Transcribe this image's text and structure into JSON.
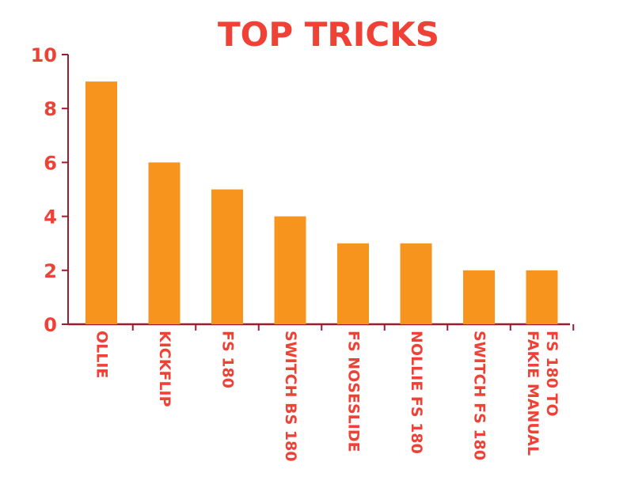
{
  "chart_data": {
    "type": "bar",
    "title": "TOP TRICKS",
    "xlabel": "",
    "ylabel": "",
    "categories": [
      "OLLIE",
      "KICKFLIP",
      "FS 180",
      "SWITCH BS 180",
      "FS NOSESLIDE",
      "NOLLIE FS 180",
      "SWITCH FS 180",
      "FS 180 TO FAKIE MANUAL"
    ],
    "category_lines": [
      [
        "OLLIE"
      ],
      [
        "KICKFLIP"
      ],
      [
        "FS 180"
      ],
      [
        "SWITCH BS 180"
      ],
      [
        "FS NOSESLIDE"
      ],
      [
        "NOLLIE FS 180"
      ],
      [
        "SWITCH FS 180"
      ],
      [
        "FS 180 TO",
        "FAKIE MANUAL"
      ]
    ],
    "values": [
      9,
      6,
      5,
      4,
      3,
      3,
      2,
      2
    ],
    "ylim": [
      0,
      10
    ],
    "yticks": [
      0,
      2,
      4,
      6,
      8,
      10
    ],
    "grid": false,
    "legend": "none",
    "colors": {
      "bar": "#f7941d",
      "axis": "#9e1b32",
      "text": "#ef4136"
    }
  }
}
